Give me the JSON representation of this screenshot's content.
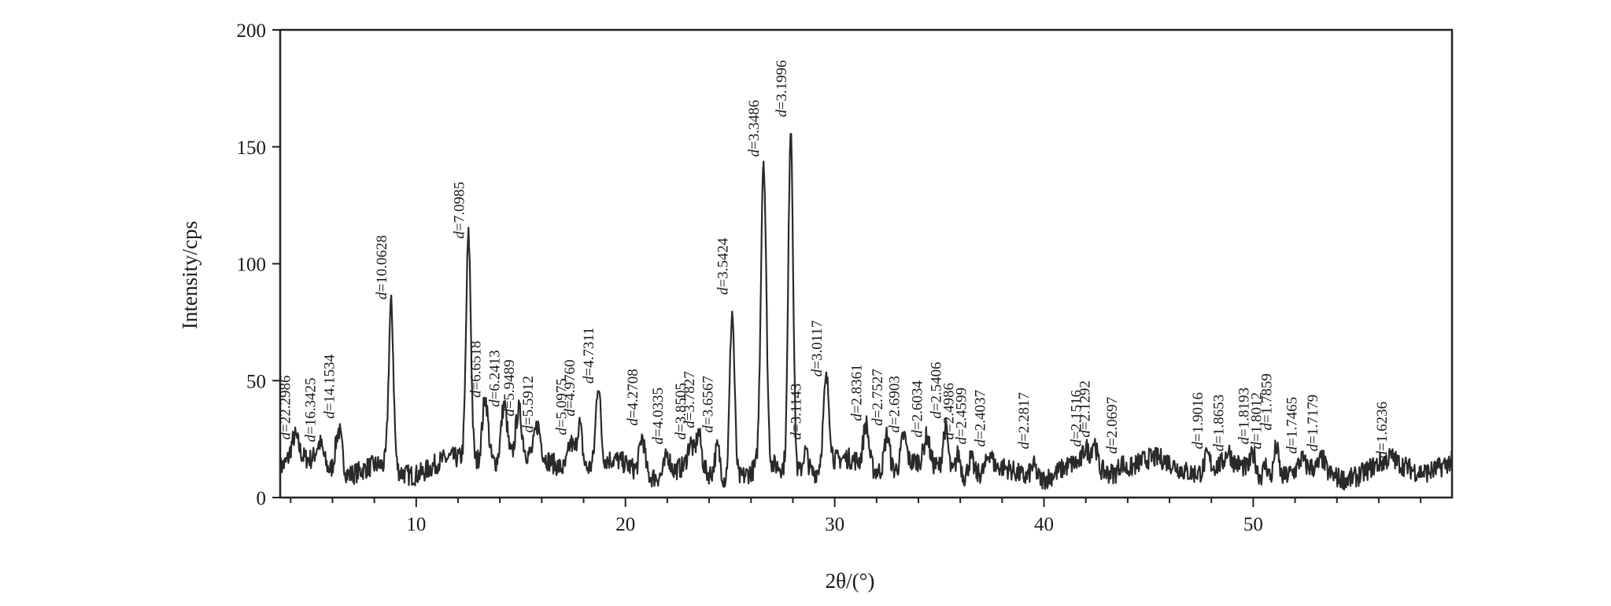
{
  "chart_data": {
    "type": "line",
    "title": "",
    "xlabel": "2θ/(°)",
    "ylabel": "Intensity/cps",
    "xlim": [
      3.5,
      59.5
    ],
    "ylim": [
      0,
      200
    ],
    "x_ticks": [
      10,
      20,
      30,
      40,
      50
    ],
    "y_ticks": [
      0,
      50,
      100,
      150,
      200
    ],
    "grid": false,
    "legend": "none",
    "line_color": "#2a2a2a",
    "baseline": 12,
    "peaks": [
      {
        "x": 4.2,
        "y": 22,
        "w": 0.25,
        "label": "d=22.2986"
      },
      {
        "x": 5.4,
        "y": 21,
        "w": 0.25,
        "label": "d=16.3425"
      },
      {
        "x": 6.3,
        "y": 31,
        "w": 0.22,
        "label": "d=14.1534"
      },
      {
        "x": 8.8,
        "y": 82,
        "w": 0.16,
        "label": "d=10.0628"
      },
      {
        "x": 12.5,
        "y": 108,
        "w": 0.16,
        "label": "d=7.0985"
      },
      {
        "x": 13.3,
        "y": 40,
        "w": 0.2,
        "label": "d=6.6518"
      },
      {
        "x": 14.2,
        "y": 36,
        "w": 0.2,
        "label": "d=6.2413"
      },
      {
        "x": 14.9,
        "y": 32,
        "w": 0.2,
        "label": "d=5.9489"
      },
      {
        "x": 15.8,
        "y": 25,
        "w": 0.2,
        "label": "d=5.5912"
      },
      {
        "x": 17.4,
        "y": 24,
        "w": 0.2,
        "label": "d=5.0975"
      },
      {
        "x": 17.8,
        "y": 32,
        "w": 0.18,
        "label": "d=4.9760"
      },
      {
        "x": 18.7,
        "y": 46,
        "w": 0.16,
        "label": "d=4.7311"
      },
      {
        "x": 20.8,
        "y": 28,
        "w": 0.18,
        "label": "d=4.2708"
      },
      {
        "x": 22.0,
        "y": 20,
        "w": 0.18,
        "label": "d=4.0335"
      },
      {
        "x": 23.1,
        "y": 22,
        "w": 0.18,
        "label": "d=3.8505"
      },
      {
        "x": 23.5,
        "y": 27,
        "w": 0.18,
        "label": "d=3.7827"
      },
      {
        "x": 24.4,
        "y": 25,
        "w": 0.18,
        "label": "d=3.6567"
      },
      {
        "x": 25.1,
        "y": 84,
        "w": 0.16,
        "label": "d=3.5424"
      },
      {
        "x": 26.6,
        "y": 143,
        "w": 0.18,
        "label": "d=3.3486"
      },
      {
        "x": 27.9,
        "y": 160,
        "w": 0.16,
        "label": "d=3.1996"
      },
      {
        "x": 28.6,
        "y": 22,
        "w": 0.18,
        "label": "d=3.1143"
      },
      {
        "x": 29.6,
        "y": 49,
        "w": 0.2,
        "label": "d=3.0117"
      },
      {
        "x": 31.5,
        "y": 30,
        "w": 0.18,
        "label": "d=2.8361"
      },
      {
        "x": 32.5,
        "y": 28,
        "w": 0.18,
        "label": "d=2.7527"
      },
      {
        "x": 33.3,
        "y": 25,
        "w": 0.18,
        "label": "d=2.6903"
      },
      {
        "x": 34.4,
        "y": 23,
        "w": 0.18,
        "label": "d=2.6034"
      },
      {
        "x": 35.3,
        "y": 31,
        "w": 0.18,
        "label": "d=2.5406"
      },
      {
        "x": 35.9,
        "y": 22,
        "w": 0.18,
        "label": "d=2.4986"
      },
      {
        "x": 36.5,
        "y": 20,
        "w": 0.18,
        "label": "d=2.4599"
      },
      {
        "x": 37.4,
        "y": 19,
        "w": 0.18,
        "label": "d=2.4037"
      },
      {
        "x": 39.5,
        "y": 18,
        "w": 0.2,
        "label": "d=2.2817"
      },
      {
        "x": 42.0,
        "y": 19,
        "w": 0.18,
        "label": "d=2.1516"
      },
      {
        "x": 42.4,
        "y": 23,
        "w": 0.18,
        "label": "d=2.1292"
      },
      {
        "x": 43.7,
        "y": 16,
        "w": 0.18,
        "label": "d=2.0697"
      },
      {
        "x": 47.8,
        "y": 18,
        "w": 0.18,
        "label": "d=1.9016"
      },
      {
        "x": 48.8,
        "y": 17,
        "w": 0.18,
        "label": "d=1.8653"
      },
      {
        "x": 50.0,
        "y": 20,
        "w": 0.18,
        "label": "d=1.8193"
      },
      {
        "x": 50.6,
        "y": 18,
        "w": 0.16,
        "label": "d=1.8012"
      },
      {
        "x": 51.1,
        "y": 26,
        "w": 0.16,
        "label": "d=1.7859"
      },
      {
        "x": 52.3,
        "y": 16,
        "w": 0.18,
        "label": "d=1.7465"
      },
      {
        "x": 53.3,
        "y": 17,
        "w": 0.18,
        "label": "d=1.7179"
      },
      {
        "x": 56.6,
        "y": 14,
        "w": 0.2,
        "label": "d=1.6236"
      }
    ]
  }
}
